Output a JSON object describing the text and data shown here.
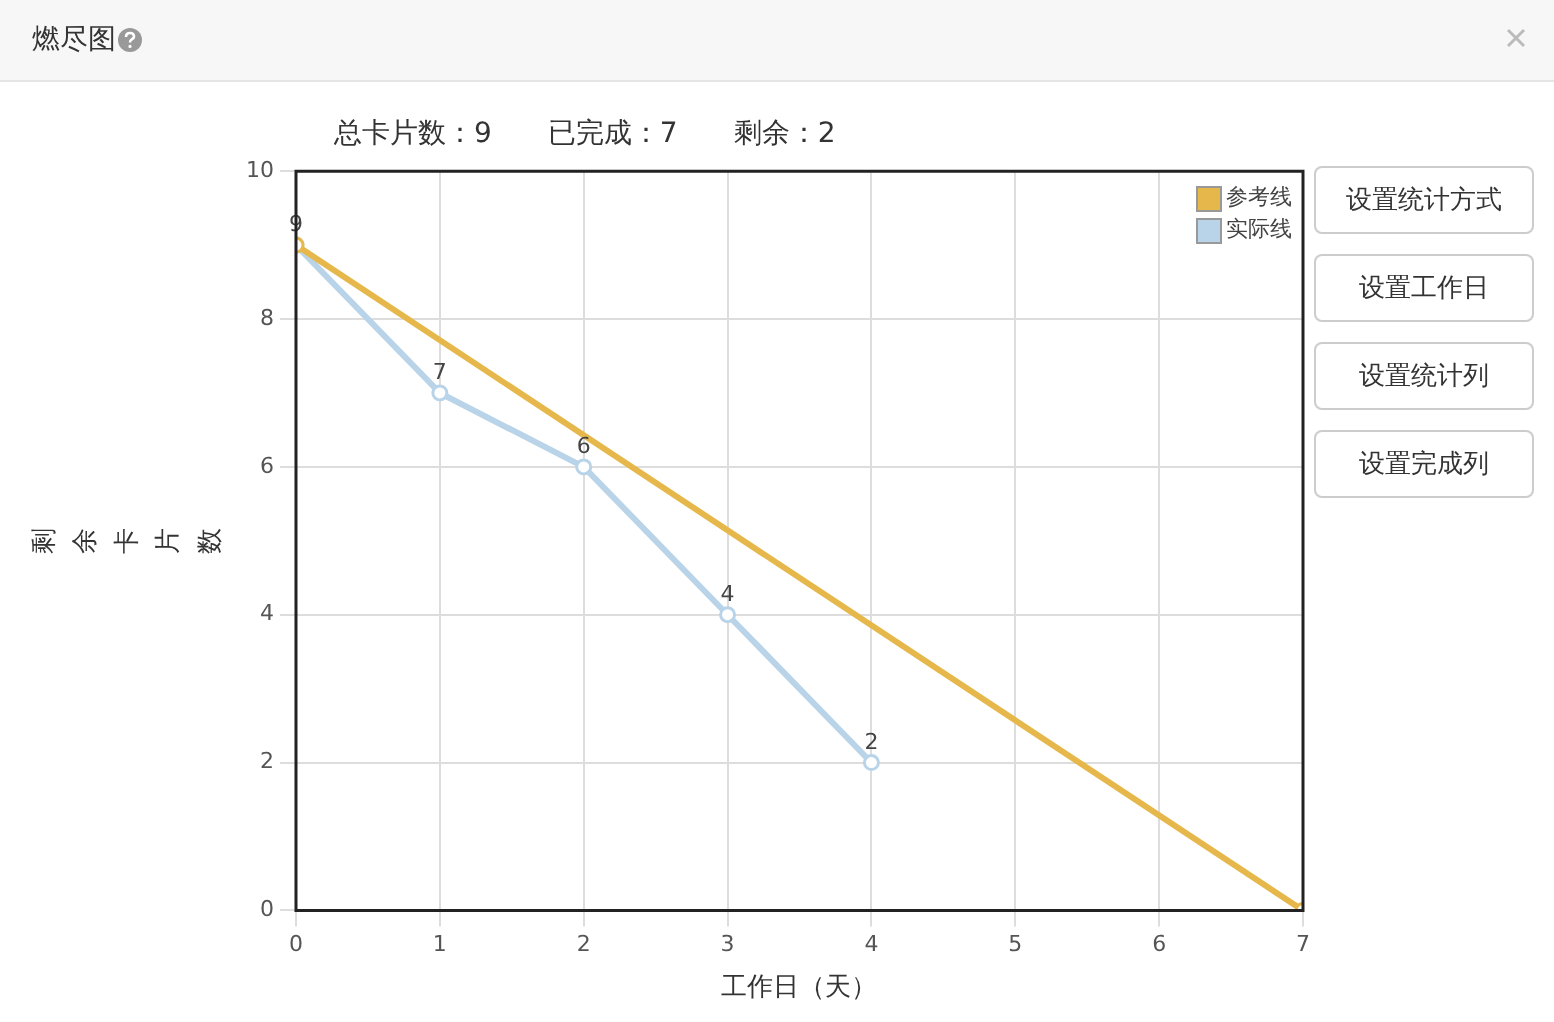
{
  "chart_data": {
    "type": "line",
    "title": "燃尽图",
    "subtitle": "总卡片数：9　　已完成：7　　剩余：2",
    "xlabel": "工作日（天）",
    "ylabel": "剩余卡片数",
    "annotations": [
      "设置统计方式",
      "设置工作日",
      "设置统计列",
      "设置完成列"
    ],
    "xlim": [
      0,
      7
    ],
    "xticks": [
      0,
      1,
      2,
      3,
      4,
      5,
      6,
      7
    ],
    "ylim": [
      0,
      10
    ],
    "yticks": [
      0,
      2,
      4,
      6,
      8,
      10
    ],
    "grid": true,
    "legend": "top right",
    "marker": "circle",
    "line_style": "solid",
    "series": [
      {
        "name": "参考线",
        "color": "#e6b84c",
        "x": [
          0,
          7
        ],
        "values": [
          9,
          0
        ]
      },
      {
        "name": "实际线",
        "color": "#b9d4e8",
        "x": [
          0,
          1,
          2,
          3,
          4
        ],
        "values": [
          9,
          7,
          6,
          4,
          2
        ],
        "value_labels": [
          "9",
          "7",
          "6",
          "4",
          "2"
        ]
      }
    ]
  }
}
